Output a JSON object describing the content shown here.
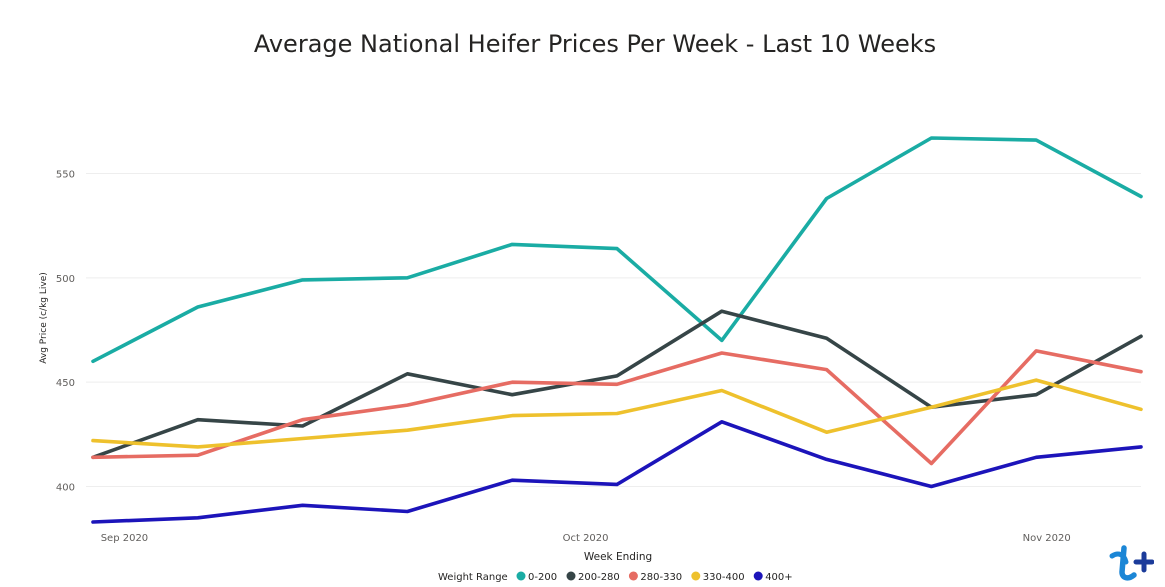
{
  "chart_data": {
    "type": "line",
    "title": "Average National Heifer Prices Per Week - Last 10 Weeks",
    "xlabel": "Week Ending",
    "ylabel": "Avg Price (c/kg Live)",
    "x_tick_labels": [
      {
        "label": "Sep 2020",
        "x": 0.3
      },
      {
        "label": "Oct 2020",
        "x": 4.7
      },
      {
        "label": "Nov 2020",
        "x": 9.1
      }
    ],
    "y_ticks": [
      400,
      450,
      500,
      550
    ],
    "ylim": [
      380,
      600
    ],
    "grid": true,
    "legend": {
      "title": "Weight Range",
      "placement": "bottom"
    },
    "x": [
      0,
      1,
      2,
      3,
      4,
      5,
      6,
      7,
      8,
      9,
      10
    ],
    "series": [
      {
        "name": "0-200",
        "color": "#1aaca4",
        "values": [
          460,
          486,
          499,
          500,
          516,
          514,
          470,
          538,
          567,
          566,
          539
        ]
      },
      {
        "name": "200-280",
        "color": "#364547",
        "values": [
          414,
          432,
          429,
          454,
          444,
          453,
          484,
          471,
          438,
          444,
          472
        ]
      },
      {
        "name": "280-330",
        "color": "#e66c63",
        "values": [
          414,
          415,
          432,
          439,
          450,
          449,
          464,
          456,
          411,
          465,
          455
        ]
      },
      {
        "name": "330-400",
        "color": "#eec12d",
        "values": [
          422,
          419,
          423,
          427,
          434,
          435,
          446,
          426,
          438,
          451,
          437
        ]
      },
      {
        "name": "400+",
        "color": "#1c14ba",
        "values": [
          383,
          385,
          391,
          388,
          403,
          401,
          431,
          413,
          400,
          414,
          419
        ]
      }
    ]
  },
  "logo": {
    "name": "brand-logo",
    "colors": [
      "#1b86d6",
      "#1b3b9a"
    ]
  }
}
